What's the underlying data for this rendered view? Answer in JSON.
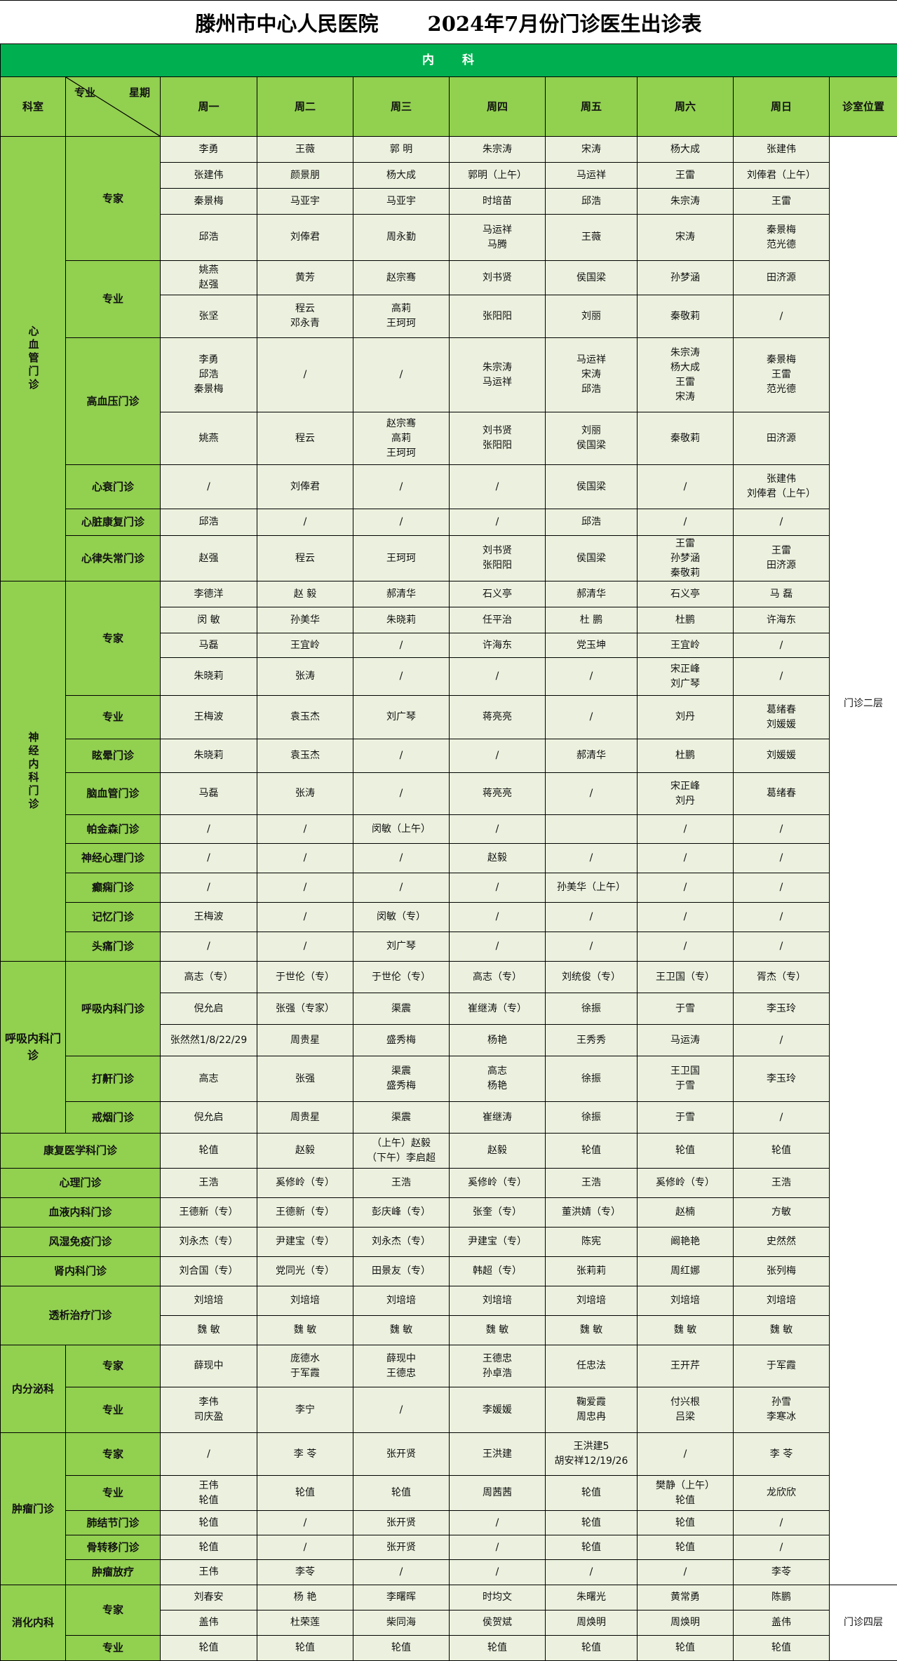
{
  "title": {
    "hospital": "滕州市中心人民医院",
    "schedule": "2024年7月份门诊医生出诊表"
  },
  "section": "内　　科",
  "headers": {
    "dept": "科室",
    "sub": "专业",
    "week": "星期",
    "days": [
      "周一",
      "周二",
      "周三",
      "周四",
      "周五",
      "周六",
      "周日"
    ],
    "location": "诊室位置"
  },
  "colors": {
    "section_bg": "#00b050",
    "header_bg": "#92d050",
    "cell_bg": "#ebf1de",
    "border": "#000000"
  },
  "groups": [
    {
      "dept": "心血管门诊",
      "location": "门诊二层",
      "subgroups": [
        {
          "name": "专家",
          "rows": [
            [
              "李勇",
              "王薇",
              "郭 明",
              "朱宗涛",
              "宋涛",
              "杨大成",
              "张建伟"
            ],
            [
              "张建伟",
              "颜景朋",
              "杨大成",
              "郭明（上午）",
              "马运祥",
              "王雷",
              "刘俸君（上午）"
            ],
            [
              "秦景梅",
              "马亚宇",
              "马亚宇",
              "时培苗",
              "邱浩",
              "朱宗涛",
              "王雷"
            ],
            [
              "邱浩",
              "刘俸君",
              "周永勤",
              "马运祥\n马腾",
              "王薇",
              "宋涛",
              "秦景梅\n范光德"
            ]
          ]
        },
        {
          "name": "专业",
          "rows": [
            [
              "姚燕\n赵强",
              "黄芳",
              "赵宗骞",
              "刘书贤",
              "侯国梁",
              "孙梦涵",
              "田济源"
            ],
            [
              "张坚",
              "程云\n邓永青",
              "高莉\n王珂珂",
              "张阳阳",
              "刘丽",
              "秦敬莉",
              "/"
            ]
          ]
        },
        {
          "name": "高血压门诊",
          "rows": [
            [
              "李勇\n邱浩\n秦景梅",
              "/",
              "/",
              "朱宗涛\n马运祥",
              "马运祥\n宋涛\n邱浩",
              "朱宗涛\n杨大成\n王雷\n宋涛",
              "秦景梅\n王雷\n范光德"
            ],
            [
              "姚燕",
              "程云",
              "赵宗骞\n高莉\n王珂珂",
              "刘书贤\n张阳阳",
              "刘丽\n侯国梁",
              "秦敬莉",
              "田济源"
            ]
          ]
        },
        {
          "name": "心衰门诊",
          "rows": [
            [
              "/",
              "刘俸君",
              "/",
              "/",
              "侯国梁",
              "/",
              "张建伟\n刘俸君（上午）"
            ]
          ]
        },
        {
          "name": "心脏康复门诊",
          "rows": [
            [
              "邱浩",
              "/",
              "/",
              "/",
              "邱浩",
              "/",
              "/"
            ]
          ]
        },
        {
          "name": "心律失常门诊",
          "rows": [
            [
              "赵强",
              "程云",
              "王珂珂",
              "刘书贤\n张阳阳",
              "侯国梁",
              "王雷\n孙梦涵\n秦敬莉",
              "王雷\n田济源"
            ]
          ]
        }
      ]
    },
    {
      "dept": "神经内科门诊",
      "location": "门诊二层",
      "subgroups": [
        {
          "name": "专家",
          "rows": [
            [
              "李德洋",
              "赵 毅",
              "郝清华",
              "石义亭",
              "郝清华",
              "石义亭",
              "马 磊"
            ],
            [
              "闵 敏",
              "孙美华",
              "朱晓莉",
              "任平治",
              "杜 鹏",
              "杜鹏",
              "许海东"
            ],
            [
              "马磊",
              "王宜岭",
              "/",
              "许海东",
              "党玉坤",
              "王宜岭",
              "/"
            ],
            [
              "朱晓莉",
              "张涛",
              "/",
              "/",
              "/",
              "宋正峰\n刘广琴",
              "/"
            ]
          ]
        },
        {
          "name": "专业",
          "rows": [
            [
              "王梅波",
              "袁玉杰",
              "刘广琴",
              "蒋亮亮",
              "/",
              "刘丹",
              "葛绪春\n刘媛媛"
            ]
          ]
        },
        {
          "name": "眩晕门诊",
          "rows": [
            [
              "朱晓莉",
              "袁玉杰",
              "/",
              "/",
              "郝清华",
              "杜鹏",
              "刘媛媛"
            ]
          ]
        },
        {
          "name": "脑血管门诊",
          "rows": [
            [
              "马磊",
              "张涛",
              "/",
              "蒋亮亮",
              "/",
              "宋正峰\n刘丹",
              "葛绪春"
            ]
          ]
        },
        {
          "name": "帕金森门诊",
          "rows": [
            [
              "/",
              "/",
              "闵敏（上午）",
              "/",
              "",
              "/",
              "/"
            ]
          ]
        },
        {
          "name": "神经心理门诊",
          "rows": [
            [
              "/",
              "/",
              "/",
              "赵毅",
              "/",
              "/",
              "/"
            ]
          ]
        },
        {
          "name": "癫痫门诊",
          "rows": [
            [
              "/",
              "/",
              "/",
              "/",
              "孙美华（上午）",
              "/",
              "/"
            ]
          ]
        },
        {
          "name": "记忆门诊",
          "rows": [
            [
              "王梅波",
              "/",
              "闵敏（专）",
              "/",
              "/",
              "/",
              "/"
            ]
          ]
        },
        {
          "name": "头痛门诊",
          "rows": [
            [
              "/",
              "/",
              "刘广琴",
              "/",
              "/",
              "/",
              "/"
            ]
          ]
        }
      ]
    },
    {
      "dept": "呼吸内科门诊",
      "location": "门诊二层",
      "subgroups": [
        {
          "name": "呼吸内科门诊",
          "rows": [
            [
              "高志（专）",
              "于世伦（专）",
              "于世伦（专）",
              "高志（专）",
              "刘统俊（专）",
              "王卫国（专）",
              "胥杰（专）"
            ],
            [
              "倪允启",
              "张强（专家）",
              "渠震",
              "崔继涛（专）",
              "徐振",
              "于雪",
              "李玉玲"
            ],
            [
              "张然然1/8/22/29",
              "周贵星",
              "盛秀梅",
              "杨艳",
              "王秀秀",
              "马运涛",
              "/"
            ]
          ]
        },
        {
          "name": "打鼾门诊",
          "rows": [
            [
              "高志",
              "张强",
              "渠震\n盛秀梅",
              "高志\n杨艳",
              "徐振",
              "王卫国\n于雪",
              "李玉玲"
            ]
          ]
        },
        {
          "name": "戒烟门诊",
          "rows": [
            [
              "倪允启",
              "周贵星",
              "渠震",
              "崔继涛",
              "徐振",
              "于雪",
              "/"
            ]
          ]
        }
      ]
    },
    {
      "dept": "康复医学科门诊",
      "location": "门诊二层",
      "rows": [
        [
          "轮值",
          "赵毅",
          "（上午）赵毅\n（下午）李启超",
          "赵毅",
          "轮值",
          "轮值",
          "轮值"
        ]
      ]
    },
    {
      "dept": "心理门诊",
      "location": "门诊二层",
      "rows": [
        [
          "王浩",
          "奚修岭（专）",
          "王浩",
          "奚修岭（专）",
          "王浩",
          "奚修岭（专）",
          "王浩"
        ]
      ]
    },
    {
      "dept": "血液内科门诊",
      "location": "门诊二层",
      "rows": [
        [
          "王德新（专）",
          "王德新（专）",
          "彭庆峰（专）",
          "张奎（专）",
          "董洪婧（专）",
          "赵楠",
          "方敏"
        ]
      ]
    },
    {
      "dept": "风湿免疫门诊",
      "location": "门诊二层",
      "rows": [
        [
          "刘永杰（专）",
          "尹建宝（专）",
          "刘永杰（专）",
          "尹建宝（专）",
          "陈宪",
          "阚艳艳",
          "史然然"
        ]
      ]
    },
    {
      "dept": "肾内科门诊",
      "location": "门诊二层",
      "rows": [
        [
          "刘合国（专）",
          "党同光（专）",
          "田景友（专）",
          "韩超（专）",
          "张莉莉",
          "周红娜",
          "张列梅"
        ]
      ]
    },
    {
      "dept": "透析治疗门诊",
      "location": "门诊二层",
      "rows": [
        [
          "刘培培",
          "刘培培",
          "刘培培",
          "刘培培",
          "刘培培",
          "刘培培",
          "刘培培"
        ],
        [
          "魏 敏",
          "魏 敏",
          "魏 敏",
          "魏 敏",
          "魏 敏",
          "魏 敏",
          "魏 敏"
        ]
      ]
    },
    {
      "dept": "内分泌科",
      "location": "门诊二层",
      "subgroups": [
        {
          "name": "专家",
          "rows": [
            [
              "薛现中",
              "庞德水\n于军霞",
              "薛现中\n王德忠",
              "王德忠\n孙卓浩",
              "任忠法",
              "王开芹",
              "于军霞"
            ]
          ]
        },
        {
          "name": "专业",
          "rows": [
            [
              "李伟\n司庆盈",
              "李宁",
              "/",
              "李媛媛",
              "鞠爱霞\n周忠冉",
              "付兴根\n吕梁",
              "孙雪\n李寒冰"
            ]
          ]
        }
      ]
    },
    {
      "dept": "肿瘤门诊",
      "location": "门诊二层",
      "subgroups": [
        {
          "name": "专家",
          "rows": [
            [
              "/",
              "李 苓",
              "张开贤",
              "王洪建",
              "王洪建5\n胡安祥12/19/26",
              "/",
              "李 苓"
            ]
          ]
        },
        {
          "name": "专业",
          "rows": [
            [
              "王伟\n轮值",
              "轮值",
              "轮值",
              "周茜茜",
              "轮值",
              "樊静（上午）\n轮值",
              "龙欣欣"
            ]
          ]
        },
        {
          "name": "肺结节门诊",
          "rows": [
            [
              "轮值",
              "/",
              "张开贤",
              "/",
              "轮值",
              "轮值",
              "/"
            ]
          ]
        },
        {
          "name": "骨转移门诊",
          "rows": [
            [
              "轮值",
              "/",
              "张开贤",
              "/",
              "轮值",
              "轮值",
              "/"
            ]
          ]
        },
        {
          "name": "肿瘤放疗",
          "rows": [
            [
              "王伟",
              "李苓",
              "/",
              "/",
              "/",
              "/",
              "李苓"
            ]
          ]
        }
      ]
    },
    {
      "dept": "消化内科",
      "location": "门诊四层",
      "subgroups": [
        {
          "name": "专家",
          "rows": [
            [
              "刘春安",
              "杨 艳",
              "李曙晖",
              "时均文",
              "朱曙光",
              "黄常勇",
              "陈鹏"
            ],
            [
              "盖伟",
              "杜荣莲",
              "柴同海",
              "侯贺斌",
              "周焕明",
              "周焕明",
              "盖伟"
            ]
          ]
        },
        {
          "name": "专业",
          "rows": [
            [
              "轮值",
              "轮值",
              "轮值",
              "轮值",
              "轮值",
              "轮值",
              "轮值"
            ]
          ]
        }
      ]
    }
  ]
}
